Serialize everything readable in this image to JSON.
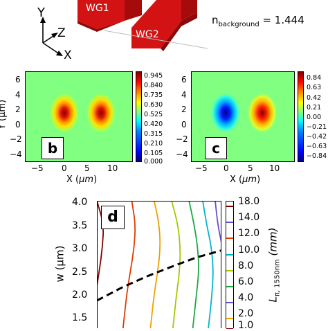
{
  "figure": {
    "panel_a": {
      "axes": {
        "y": "Y",
        "z": "Z",
        "x": "X"
      },
      "waveguide_labels": [
        "WG1",
        "WG2"
      ],
      "background_label": {
        "main": "n",
        "sub": "background",
        "value": "= 1.444"
      }
    },
    "panel_b": {
      "letter": "b",
      "xlabel_text": "X (",
      "xlabel_unit": "µm",
      "xlabel_close": ")",
      "ylabel": "Y (µm)",
      "xticks": [
        "−5",
        "0",
        "5",
        "10"
      ],
      "yticks": [
        "6",
        "4",
        "2",
        "0",
        "−2",
        "−4"
      ],
      "colorbar_ticks": [
        "0.945",
        "0.840",
        "0.735",
        "0.630",
        "0.525",
        "0.420",
        "0.315",
        "0.210",
        "0.105",
        "0.000"
      ]
    },
    "panel_c": {
      "letter": "c",
      "xlabel_text": "X (",
      "xlabel_unit": "µm",
      "xlabel_close": ")",
      "xticks": [
        "−5",
        "0",
        "5",
        "10"
      ],
      "yticks": [
        "6",
        "4",
        "2",
        "0",
        "−2",
        "−4"
      ],
      "colorbar_ticks": [
        "0.84",
        "0.63",
        "0.42",
        "0.21",
        "0.00",
        "−0.21",
        "−0.42",
        "−0.63",
        "−0.84"
      ]
    },
    "panel_d": {
      "letter": "d",
      "ylabel": "w (µm)",
      "yticks": [
        "4.0",
        "3.5",
        "3.0",
        "2.5",
        "2.0",
        "1.5"
      ],
      "colorbar_ticks": [
        "18.0",
        "14.0",
        "12.0",
        "10.0",
        "8.0",
        "6.0",
        "4.0",
        "2.0",
        "1.0"
      ],
      "colorbar_label_main": "L",
      "colorbar_label_sub": "π, 1550nm",
      "colorbar_label_unit": " (mm)"
    }
  },
  "chart_data": [
    {
      "type": "heatmap",
      "panel": "b",
      "xlabel": "X (µm)",
      "ylabel": "Y (µm)",
      "xlim": [
        -6.5,
        14
      ],
      "ylim": [
        -5,
        7
      ],
      "colorbar_range": [
        0.0,
        0.945
      ],
      "colormap": "jet",
      "peaks": [
        {
          "x": 0,
          "y": 1.5,
          "value": 0.945
        },
        {
          "x": 8,
          "y": 1.5,
          "value": 0.945
        }
      ]
    },
    {
      "type": "heatmap",
      "panel": "c",
      "xlabel": "X (µm)",
      "xlim": [
        -6.5,
        14
      ],
      "ylim": [
        -5,
        7
      ],
      "colorbar_range": [
        -0.84,
        0.84
      ],
      "colormap": "jet",
      "peaks": [
        {
          "x": 0,
          "y": 1.5,
          "value": -0.84
        },
        {
          "x": 8,
          "y": 1.5,
          "value": 0.84
        }
      ]
    },
    {
      "type": "line",
      "panel": "d",
      "ylabel": "w (µm)",
      "ylim": [
        1.25,
        4.0
      ],
      "colorbar_label": "L π, 1550nm (mm)",
      "series": [
        {
          "level": 18.0,
          "color": "#800000",
          "points": [
            [
              0.0,
              4.0
            ],
            [
              0.055,
              3.5
            ],
            [
              0.045,
              3.0
            ],
            [
              0.02,
              2.5
            ],
            [
              -0.01,
              2.0
            ],
            [
              -0.03,
              1.5
            ],
            [
              -0.04,
              1.25
            ]
          ]
        },
        {
          "level": 14.0,
          "color": "#e23b00",
          "points": [
            [
              0.28,
              4.0
            ],
            [
              0.31,
              3.5
            ],
            [
              0.3,
              3.0
            ],
            [
              0.27,
              2.5
            ],
            [
              0.24,
              2.0
            ],
            [
              0.22,
              1.5
            ],
            [
              0.21,
              1.25
            ]
          ]
        },
        {
          "level": 12.0,
          "color": "#f0a000",
          "points": [
            [
              0.46,
              4.0
            ],
            [
              0.5,
              3.5
            ],
            [
              0.51,
              3.0
            ],
            [
              0.49,
              2.5
            ],
            [
              0.46,
              2.0
            ],
            [
              0.44,
              1.5
            ],
            [
              0.43,
              1.25
            ]
          ]
        },
        {
          "level": 10.0,
          "color": "#a8c800",
          "points": [
            [
              0.6,
              4.0
            ],
            [
              0.65,
              3.5
            ],
            [
              0.67,
              3.0
            ],
            [
              0.665,
              2.5
            ],
            [
              0.64,
              2.0
            ],
            [
              0.62,
              1.5
            ],
            [
              0.61,
              1.25
            ]
          ]
        },
        {
          "level": 8.0,
          "color": "#1fa840",
          "points": [
            [
              0.74,
              4.0
            ],
            [
              0.78,
              3.5
            ],
            [
              0.81,
              3.0
            ],
            [
              0.82,
              2.5
            ],
            [
              0.8,
              2.0
            ],
            [
              0.78,
              1.5
            ],
            [
              0.77,
              1.25
            ]
          ]
        },
        {
          "level": 6.0,
          "color": "#00b4d0",
          "points": [
            [
              0.85,
              4.0
            ],
            [
              0.88,
              3.5
            ],
            [
              0.92,
              3.0
            ],
            [
              0.935,
              2.5
            ],
            [
              0.925,
              2.0
            ],
            [
              0.905,
              1.5
            ],
            [
              0.895,
              1.25
            ]
          ]
        },
        {
          "level": 4.0,
          "color": "#6a4fd0",
          "points": [
            [
              0.95,
              4.0
            ],
            [
              0.97,
              3.5
            ],
            [
              1.0,
              3.1
            ]
          ]
        }
      ],
      "dashed_line": {
        "color": "#000000",
        "points": [
          [
            0.0,
            1.85
          ],
          [
            0.2,
            2.13
          ],
          [
            0.4,
            2.37
          ],
          [
            0.6,
            2.58
          ],
          [
            0.8,
            2.78
          ],
          [
            1.0,
            2.93
          ]
        ]
      }
    }
  ]
}
